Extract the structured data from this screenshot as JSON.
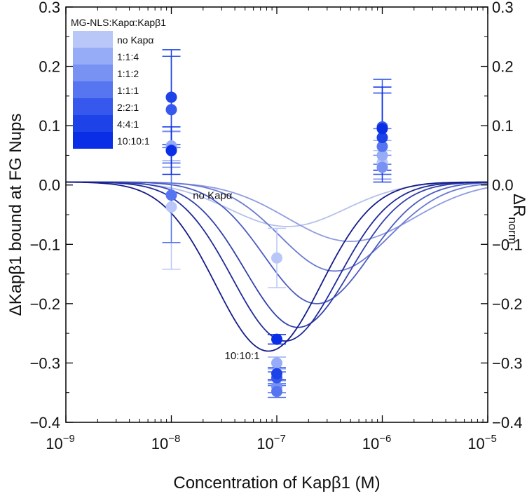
{
  "chart_data": {
    "type": "scatter",
    "title": "",
    "xlabel": "Concentration of Kapβ1 (M)",
    "ylabel": "ΔKapβ1 bound at FG Nups",
    "y2label_main": "ΔR",
    "y2label_sub": "norm",
    "x_scale": "log",
    "xlim": [
      1e-09,
      1e-05
    ],
    "ylim": [
      -0.4,
      0.3
    ],
    "x_ticks": [
      1e-09,
      1e-08,
      1e-07,
      1e-06,
      1e-05
    ],
    "x_tick_labels": [
      {
        "base": "10",
        "exp": "−9"
      },
      {
        "base": "10",
        "exp": "−8"
      },
      {
        "base": "10",
        "exp": "−7"
      },
      {
        "base": "10",
        "exp": "−6"
      },
      {
        "base": "10",
        "exp": "−5"
      }
    ],
    "y_ticks": [
      -0.4,
      -0.3,
      -0.2,
      -0.1,
      0.0,
      0.1,
      0.2,
      0.3
    ],
    "y_tick_labels": [
      "−0.4",
      "−0.3",
      "−0.2",
      "−0.1",
      "0.0",
      "0.1",
      "0.2",
      "0.3"
    ],
    "grid": false,
    "legend": {
      "title": "MG-NLS:Kapα:Kapβ1",
      "placement": "top-left",
      "entries": [
        {
          "label": "no  Kapα",
          "color": "#b8c7f7"
        },
        {
          "label": "1:1:4",
          "color": "#97acf6"
        },
        {
          "label": "1:1:2",
          "color": "#7892f3"
        },
        {
          "label": "1:1:1",
          "color": "#5675f0"
        },
        {
          "label": "2:2:1",
          "color": "#3658ec"
        },
        {
          "label": "4:4:1",
          "color": "#1d42e8"
        },
        {
          "label": "10:10:1",
          "color": "#0a2de6"
        }
      ]
    },
    "series": [
      {
        "name": "no  Kapα",
        "color": "#b8c7f7",
        "line_color": "#b5c0ec",
        "curve": {
          "center_log": -6.9,
          "width_log": 0.55,
          "amp": 0.075,
          "base": 0.005
        },
        "points": [
          {
            "x": 1e-08,
            "y": -0.037,
            "err": 0.105
          },
          {
            "x": 1e-07,
            "y": -0.123,
            "err": 0.05
          },
          {
            "x": 1e-06,
            "y": 0.038,
            "err": 0.02
          }
        ]
      },
      {
        "name": "1:1:4",
        "color": "#97acf6",
        "line_color": "#8e9be0",
        "curve": {
          "center_log": -6.3,
          "width_log": 0.6,
          "amp": 0.1,
          "base": 0.005
        },
        "points": [
          {
            "x": 1e-08,
            "y": 0.066,
            "err": 0.025
          },
          {
            "x": 1e-07,
            "y": -0.3,
            "err": 0.01
          },
          {
            "x": 1e-06,
            "y": 0.05,
            "err": 0.025
          }
        ]
      },
      {
        "name": "1:1:2",
        "color": "#7892f3",
        "line_color": "#6b7ad2",
        "curve": {
          "center_log": -6.45,
          "width_log": 0.52,
          "amp": 0.15,
          "base": 0.005
        },
        "points": [
          {
            "x": 1e-08,
            "y": 0.06,
            "err": 0.03
          },
          {
            "x": 1e-07,
            "y": -0.34,
            "err": 0.01
          },
          {
            "x": 1e-06,
            "y": 0.03,
            "err": 0.02
          }
        ]
      },
      {
        "name": "1:1:1",
        "color": "#5675f0",
        "line_color": "#4b5bc2",
        "curve": {
          "center_log": -6.62,
          "width_log": 0.5,
          "amp": 0.205,
          "base": 0.005
        },
        "points": [
          {
            "x": 1e-08,
            "y": -0.017,
            "err": 0.08
          },
          {
            "x": 1e-07,
            "y": -0.348,
            "err": 0.01
          },
          {
            "x": 1e-06,
            "y": 0.065,
            "err": 0.03
          }
        ]
      },
      {
        "name": "2:2:1",
        "color": "#3658ec",
        "line_color": "#323fac",
        "curve": {
          "center_log": -6.8,
          "width_log": 0.5,
          "amp": 0.245,
          "base": 0.005
        },
        "points": [
          {
            "x": 1e-08,
            "y": 0.127,
            "err": 0.09
          },
          {
            "x": 1e-07,
            "y": -0.325,
            "err": 0.01
          },
          {
            "x": 1e-06,
            "y": 0.098,
            "err": 0.08
          }
        ]
      },
      {
        "name": "4:4:1",
        "color": "#1d42e8",
        "line_color": "#1f2a98",
        "curve": {
          "center_log": -6.92,
          "width_log": 0.5,
          "amp": 0.268,
          "base": 0.005
        },
        "points": [
          {
            "x": 1e-08,
            "y": 0.148,
            "err": 0.08
          },
          {
            "x": 1e-07,
            "y": -0.318,
            "err": 0.01
          },
          {
            "x": 1e-06,
            "y": 0.08,
            "err": 0.075
          }
        ]
      },
      {
        "name": "10:10:1",
        "color": "#0a2de6",
        "line_color": "#141c86",
        "curve": {
          "center_log": -7.08,
          "width_log": 0.5,
          "amp": 0.285,
          "base": 0.005
        },
        "points": [
          {
            "x": 1e-08,
            "y": 0.058,
            "err": 0.04
          },
          {
            "x": 1e-07,
            "y": -0.26,
            "err": 0.008
          },
          {
            "x": 1e-06,
            "y": 0.095,
            "err": 0.07
          }
        ]
      }
    ],
    "annotations": [
      {
        "text": "no  Kapα",
        "x": 1.6e-08,
        "y": 0.0
      },
      {
        "text": "10:10:1",
        "x": 3.2e-08,
        "y": -0.27
      }
    ]
  }
}
